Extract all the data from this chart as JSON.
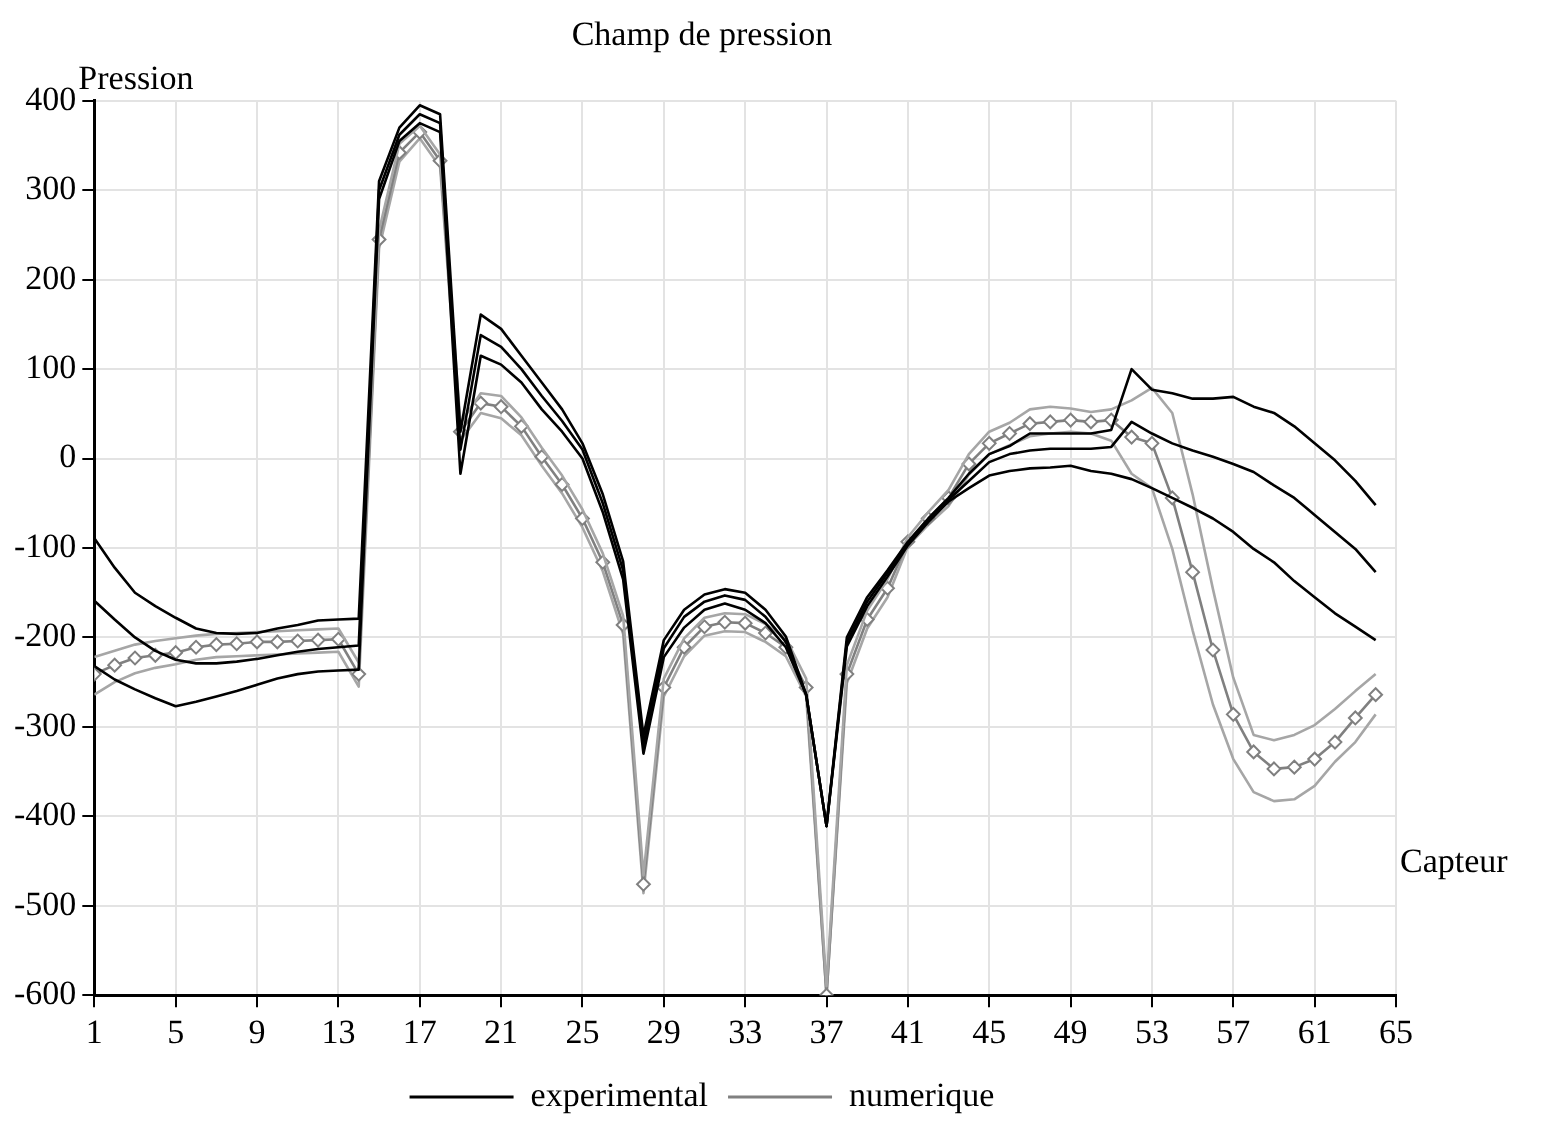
{
  "chart_data": {
    "type": "line",
    "title": "Champ de pression",
    "xlabel": "Capteur",
    "ylabel": "Pression",
    "x": [
      1,
      2,
      3,
      4,
      5,
      6,
      7,
      8,
      9,
      10,
      11,
      12,
      13,
      14,
      15,
      16,
      17,
      18,
      19,
      20,
      21,
      22,
      23,
      24,
      25,
      26,
      27,
      28,
      29,
      30,
      31,
      32,
      33,
      34,
      35,
      36,
      37,
      38,
      39,
      40,
      41,
      42,
      43,
      44,
      45,
      46,
      47,
      48,
      49,
      50,
      51,
      52,
      53,
      54,
      55,
      56,
      57,
      58,
      59,
      60,
      61,
      62,
      63,
      64
    ],
    "xlim": [
      1,
      65
    ],
    "xticks": [
      1,
      5,
      9,
      13,
      17,
      21,
      25,
      29,
      33,
      37,
      41,
      45,
      49,
      53,
      57,
      61,
      65
    ],
    "ylim": [
      -600,
      400
    ],
    "yticks": [
      -600,
      -500,
      -400,
      -300,
      -200,
      -100,
      0,
      100,
      200,
      300,
      400
    ],
    "grid": true,
    "legend": "bottom",
    "line_style": "solid",
    "series": [
      {
        "color": "#000000",
        "marker": "none",
        "values": [
          -89,
          -122,
          -150,
          -165,
          -178,
          -190,
          -195,
          -196,
          -195,
          -190,
          -186,
          -181,
          -180,
          -179,
          310,
          370,
          395,
          385,
          30,
          161,
          145,
          115,
          85,
          55,
          17,
          -40,
          -115,
          -310,
          -203,
          -169,
          -152,
          -146,
          -150,
          -169,
          -199,
          -264,
          -411,
          -200,
          -155,
          -125,
          -93,
          -67,
          -44,
          -17,
          5,
          14,
          28,
          28,
          28,
          28,
          32,
          100,
          77,
          73,
          67,
          67,
          69,
          58,
          51,
          36,
          17,
          -2,
          -25,
          -52
        ]
      },
      {
        "name": "experimental",
        "color": "#000000",
        "marker": "none",
        "values": [
          -159,
          -180,
          -200,
          -215,
          -225,
          -229,
          -229,
          -227,
          -224,
          -220,
          -216,
          -213,
          -211,
          -209,
          300,
          362,
          385,
          375,
          10,
          138,
          125,
          100,
          70,
          42,
          10,
          -50,
          -125,
          -320,
          -212,
          -177,
          -160,
          -153,
          -158,
          -177,
          -205,
          -264,
          -411,
          -205,
          -160,
          -128,
          -95,
          -69,
          -46,
          -25,
          -4,
          5,
          9,
          11,
          11,
          11,
          13,
          41,
          28,
          17,
          9,
          2,
          -6,
          -15,
          -30,
          -44,
          -63,
          -82,
          -101,
          -127
        ]
      },
      {
        "color": "#000000",
        "marker": "none",
        "values": [
          -232,
          -247,
          -258,
          -268,
          -277,
          -272,
          -266,
          -260,
          -253,
          -246,
          -241,
          -238,
          -237,
          -236,
          290,
          355,
          375,
          365,
          -17,
          115,
          105,
          85,
          55,
          30,
          0,
          -60,
          -135,
          -330,
          -222,
          -189,
          -169,
          -162,
          -169,
          -184,
          -211,
          -264,
          -411,
          -210,
          -165,
          -132,
          -97,
          -71,
          -48,
          -33,
          -19,
          -14,
          -11,
          -10,
          -8,
          -14,
          -17,
          -23,
          -33,
          -44,
          -55,
          -67,
          -82,
          -101,
          -116,
          -137,
          -155,
          -173,
          -188,
          -203
        ]
      },
      {
        "color": "#a6a6a6",
        "marker": "none",
        "values": [
          -222,
          -215,
          -208,
          -204,
          -201,
          -198,
          -196,
          -195,
          -194,
          -193,
          -192,
          -191,
          -190,
          -228,
          255,
          352,
          372,
          340,
          40,
          73,
          70,
          46,
          12,
          -19,
          -57,
          -106,
          -176,
          -466,
          -246,
          -201,
          -178,
          -173,
          -174,
          -185,
          -201,
          -246,
          -590,
          -231,
          -170,
          -135,
          -88,
          -60,
          -35,
          5,
          30,
          40,
          55,
          58,
          56,
          52,
          55,
          65,
          79,
          51,
          -40,
          -146,
          -245,
          -309,
          -315,
          -309,
          -298,
          -280,
          -260,
          -241
        ]
      },
      {
        "name": "numerique",
        "color": "#808080",
        "marker": "diamond",
        "values": [
          -241,
          -231,
          -223,
          -220,
          -217,
          -211,
          -208,
          -207,
          -205,
          -205,
          -204,
          -203,
          -202,
          -241,
          245,
          342,
          365,
          333,
          30,
          62,
          58,
          36,
          2,
          -29,
          -67,
          -116,
          -186,
          -476,
          -256,
          -211,
          -188,
          -183,
          -184,
          -195,
          -211,
          -256,
          -600,
          -241,
          -180,
          -145,
          -93,
          -67,
          -44,
          -6,
          17,
          28,
          39,
          41,
          43,
          41,
          43,
          24,
          17,
          -44,
          -127,
          -214,
          -286,
          -328,
          -347,
          -345,
          -336,
          -317,
          -290,
          -264
        ]
      },
      {
        "color": "#a6a6a6",
        "marker": "none",
        "values": [
          -264,
          -250,
          -240,
          -234,
          -230,
          -225,
          -222,
          -221,
          -220,
          -219,
          -218,
          -217,
          -216,
          -255,
          235,
          332,
          358,
          326,
          20,
          51,
          45,
          26,
          -8,
          -39,
          -77,
          -126,
          -196,
          -486,
          -266,
          -221,
          -198,
          -193,
          -194,
          -205,
          -221,
          -266,
          -600,
          -251,
          -190,
          -155,
          -98,
          -74,
          -53,
          -18,
          5,
          15,
          25,
          28,
          30,
          28,
          20,
          -17,
          -33,
          -101,
          -192,
          -275,
          -336,
          -373,
          -383,
          -381,
          -366,
          -339,
          -317,
          -286
        ]
      }
    ]
  }
}
